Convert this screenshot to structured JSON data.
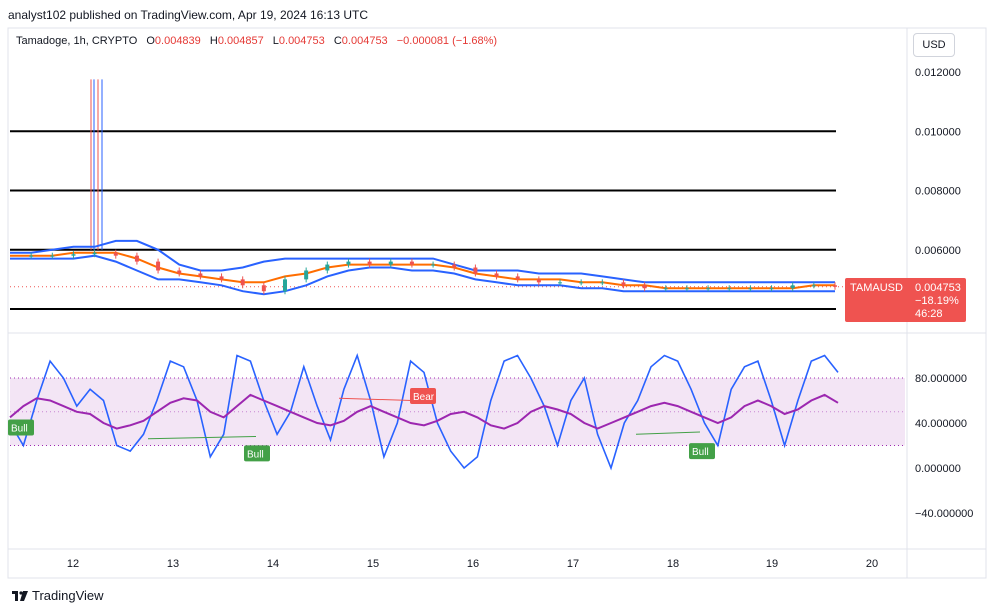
{
  "header": {
    "published_by": "analyst102 published on TradingView.com, Apr 19, 2024 16:13 UTC"
  },
  "legend": {
    "symbol": "Tamadoge, 1h, CRYPTO",
    "open_label": "O",
    "open": "0.004839",
    "high_label": "H",
    "high": "0.004857",
    "low_label": "L",
    "low": "0.004753",
    "close_label": "C",
    "close": "0.004753",
    "change": "−0.000081 (−1.68%)"
  },
  "currency_button": "USD",
  "price_tag": {
    "ticker": "TAMAUSD",
    "price": "0.004753",
    "change": "−18.19%",
    "countdown": "46:28",
    "color": "#ef5350"
  },
  "footer": {
    "brand": "TradingView"
  },
  "colors": {
    "bollinger": "#2962ff",
    "basis": "#ff6d00",
    "horizontal_lines": "#000000",
    "up_candle": "#26a69a",
    "down_candle": "#ef5350",
    "stoch_k": "#2962ff",
    "rsi": "#9c27b0",
    "band_fill": "#f3e5f5",
    "bull_label": "#43a047",
    "bear_label": "#ef5350"
  },
  "chart_data": [
    {
      "type": "candlestick",
      "ticker": "TAMAUSD",
      "x": [
        "12",
        "13",
        "14",
        "15",
        "16",
        "17",
        "18",
        "19",
        "20"
      ],
      "y_ticks": [
        "0.012000",
        "0.010000",
        "0.008000",
        "0.006000"
      ],
      "ylim": [
        0.004,
        0.0125
      ],
      "horizontal_lines": [
        0.01,
        0.008,
        0.006,
        0.004
      ],
      "spike_highs": [
        0.01175,
        0.01175,
        0.01175,
        0.01175
      ],
      "close_series": [
        0.0058,
        0.0058,
        0.0058,
        0.00585,
        0.0059,
        0.0058,
        0.0056,
        0.0053,
        0.0052,
        0.0051,
        0.005,
        0.0048,
        0.0046,
        0.005,
        0.0053,
        0.0055,
        0.0056,
        0.0055,
        0.0056,
        0.0055,
        0.0055,
        0.0054,
        0.0052,
        0.0051,
        0.005,
        0.0049,
        0.0049,
        0.0049,
        0.0049,
        0.0048,
        0.0047,
        0.0047,
        0.0047,
        0.0047,
        0.0047,
        0.0047,
        0.0047,
        0.0048,
        0.0048,
        0.00475
      ],
      "bollinger_upper": [
        0.0059,
        0.0059,
        0.006,
        0.0061,
        0.0061,
        0.0063,
        0.0063,
        0.006,
        0.0055,
        0.0053,
        0.0053,
        0.0054,
        0.0056,
        0.0057,
        0.0057,
        0.0057,
        0.0057,
        0.0057,
        0.0057,
        0.0057,
        0.0057,
        0.0055,
        0.0053,
        0.0053,
        0.0053,
        0.0052,
        0.0052,
        0.0052,
        0.0051,
        0.005,
        0.0049,
        0.0049,
        0.0049,
        0.0049,
        0.0049,
        0.0049,
        0.0049,
        0.0049,
        0.0049,
        0.0049
      ],
      "bollinger_basis": [
        0.0058,
        0.0058,
        0.0058,
        0.0059,
        0.0059,
        0.0059,
        0.0057,
        0.0054,
        0.0052,
        0.0051,
        0.005,
        0.0049,
        0.0049,
        0.0051,
        0.0052,
        0.0054,
        0.0055,
        0.0055,
        0.0055,
        0.0055,
        0.0055,
        0.0054,
        0.0052,
        0.0051,
        0.005,
        0.005,
        0.005,
        0.0049,
        0.0049,
        0.0048,
        0.0048,
        0.0047,
        0.0047,
        0.0047,
        0.0047,
        0.0047,
        0.0047,
        0.0047,
        0.0048,
        0.0048
      ],
      "bollinger_lower": [
        0.0057,
        0.0057,
        0.0057,
        0.0057,
        0.0058,
        0.0056,
        0.0053,
        0.005,
        0.005,
        0.0049,
        0.0048,
        0.0046,
        0.0045,
        0.0046,
        0.0048,
        0.0051,
        0.0053,
        0.0054,
        0.0054,
        0.0053,
        0.0053,
        0.0052,
        0.005,
        0.0049,
        0.0048,
        0.0048,
        0.0048,
        0.0047,
        0.0047,
        0.0046,
        0.0046,
        0.0046,
        0.0046,
        0.0046,
        0.0046,
        0.0046,
        0.0046,
        0.0046,
        0.0046,
        0.0046
      ]
    },
    {
      "type": "line",
      "name": "stochastic / rsi oscillator",
      "x": [
        "12",
        "13",
        "14",
        "15",
        "16",
        "17",
        "18",
        "19",
        "20"
      ],
      "y_ticks": [
        "80.000000",
        "40.000000",
        "0.000000",
        "−40.000000"
      ],
      "ylim": [
        -60,
        110
      ],
      "band": [
        20,
        80
      ],
      "midline": 50,
      "stoch_k": [
        40,
        20,
        60,
        95,
        80,
        55,
        70,
        60,
        20,
        15,
        30,
        60,
        95,
        90,
        60,
        10,
        30,
        100,
        95,
        60,
        30,
        50,
        90,
        55,
        25,
        70,
        100,
        60,
        10,
        40,
        95,
        85,
        40,
        15,
        0,
        10,
        60,
        95,
        100,
        80,
        55,
        20,
        60,
        80,
        30,
        0,
        40,
        60,
        90,
        100,
        95,
        70,
        40,
        20,
        70,
        90,
        95,
        60,
        20,
        60,
        95,
        100,
        85
      ],
      "rsi": [
        45,
        55,
        62,
        60,
        55,
        50,
        48,
        40,
        35,
        38,
        42,
        50,
        58,
        62,
        60,
        50,
        45,
        55,
        65,
        60,
        55,
        50,
        45,
        40,
        38,
        42,
        50,
        55,
        50,
        45,
        40,
        38,
        42,
        48,
        50,
        45,
        38,
        35,
        40,
        50,
        55,
        52,
        48,
        40,
        35,
        40,
        45,
        50,
        55,
        58,
        55,
        50,
        45,
        40,
        45,
        55,
        60,
        55,
        48,
        52,
        60,
        65,
        58
      ],
      "labels": [
        {
          "text": "Bull",
          "type": "bull"
        },
        {
          "text": "Bull",
          "type": "bull"
        },
        {
          "text": "Bear",
          "type": "bear"
        },
        {
          "text": "Bull",
          "type": "bull"
        }
      ]
    }
  ]
}
